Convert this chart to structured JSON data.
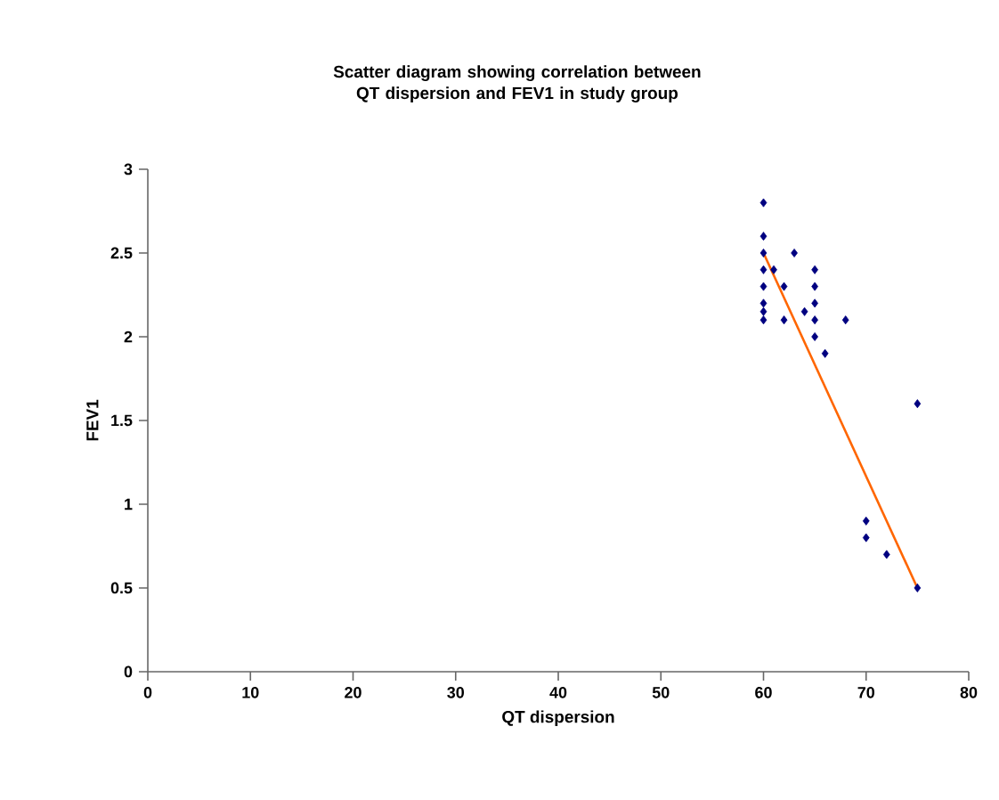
{
  "chart_data": {
    "type": "scatter",
    "title": "Scatter diagram showing correlation between QT dispersion and FEV1 in study group",
    "xlabel": "QT dispersion",
    "ylabel": "FEV1",
    "xlim": [
      0,
      80
    ],
    "xticks": [
      0,
      10,
      20,
      30,
      40,
      50,
      60,
      70,
      80
    ],
    "ylim": [
      0,
      3
    ],
    "yticks": [
      0,
      0.5,
      1,
      1.5,
      2,
      2.5,
      3
    ],
    "grid": false,
    "marker": "diamond",
    "series": [
      {
        "color": "#000080",
        "x": [
          60,
          60,
          60,
          63,
          60,
          61,
          65,
          60,
          62,
          65,
          60,
          65,
          60,
          64,
          60,
          62,
          65,
          68,
          65,
          66,
          75,
          70,
          70,
          72,
          75
        ],
        "values": [
          2.8,
          2.6,
          2.5,
          2.5,
          2.4,
          2.4,
          2.4,
          2.3,
          2.3,
          2.3,
          2.2,
          2.2,
          2.15,
          2.15,
          2.1,
          2.1,
          2.1,
          2.1,
          2.0,
          1.9,
          1.6,
          0.9,
          0.8,
          0.7,
          0.5
        ]
      },
      {
        "type": "line",
        "color": "#ff6600",
        "marker": "none",
        "x": [
          60,
          75
        ],
        "values": [
          2.5,
          0.5
        ]
      }
    ]
  }
}
